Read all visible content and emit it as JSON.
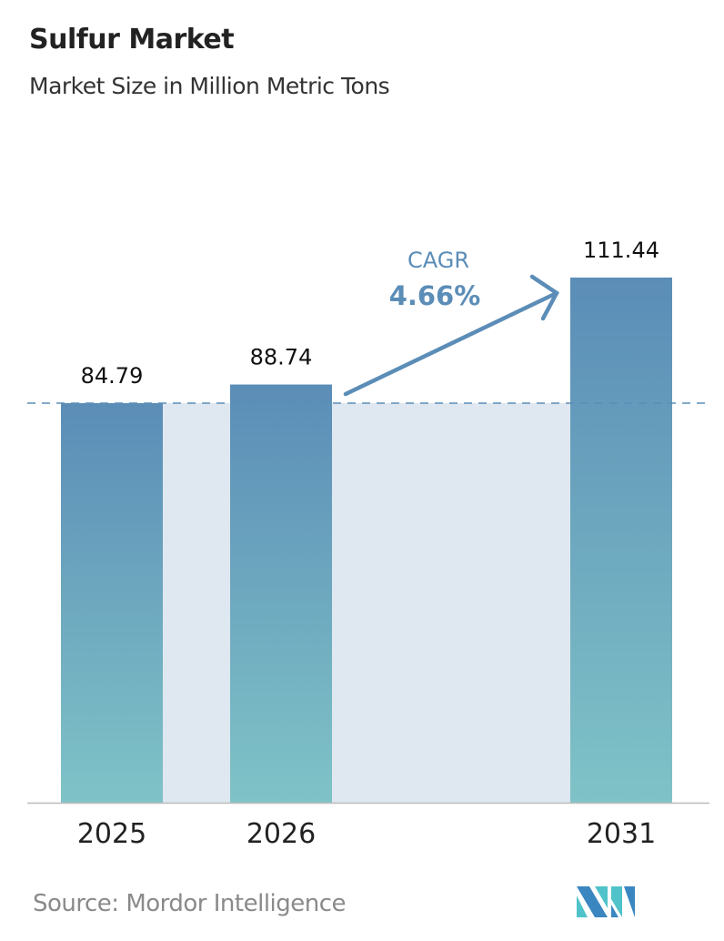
{
  "header": {
    "title": "Sulfur Market",
    "subtitle": "Market Size in Million Metric Tons"
  },
  "chart_data": {
    "type": "bar",
    "categories": [
      "2025",
      "2026",
      "2031"
    ],
    "values": [
      84.79,
      88.74,
      111.44
    ],
    "data_labels": [
      "84.79",
      "88.74",
      "111.44"
    ],
    "ylim": [
      0,
      111.44
    ],
    "grid": false,
    "annotation": {
      "label": "CAGR",
      "value": "4.66%"
    },
    "colors": {
      "bar_top": "#5b8db7",
      "bar_bottom": "#7fc3c7",
      "band": "#dfe8f0",
      "accent": "#5b8db7"
    }
  },
  "footer": {
    "source": "Source:  Mordor Intelligence",
    "logo_text": "Mordor Intelligence"
  }
}
